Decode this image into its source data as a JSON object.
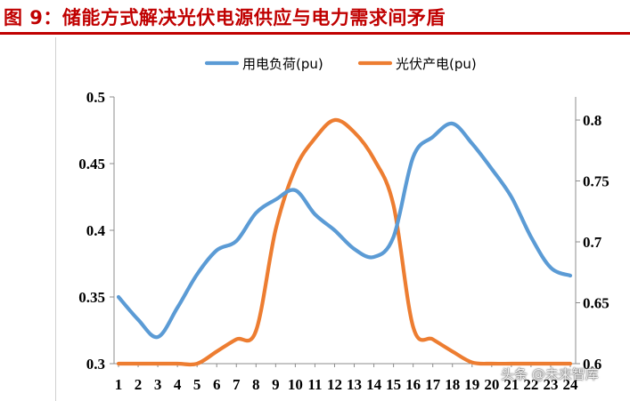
{
  "page": {
    "title": "图 9：储能方式解决光伏电源供应与电力需求间矛盾",
    "watermark": "头条 @未来智库"
  },
  "chart_data": {
    "type": "line",
    "x": [
      1,
      2,
      3,
      4,
      5,
      6,
      7,
      8,
      9,
      10,
      11,
      12,
      13,
      14,
      15,
      16,
      17,
      18,
      19,
      20,
      21,
      22,
      23,
      24
    ],
    "y_left_ticks": [
      "0.3",
      "0.35",
      "0.4",
      "0.45",
      "0.5"
    ],
    "y_right_ticks": [
      "0.6",
      "0.65",
      "0.7",
      "0.75",
      "0.8"
    ],
    "ylim_left": [
      0.3,
      0.5
    ],
    "ylim_right": [
      0.6,
      0.8
    ],
    "legend_position": "top-center",
    "series": [
      {
        "name": "用电负荷(pu)",
        "axis": "left",
        "color": "#5b9bd5",
        "values": [
          0.35,
          0.333,
          0.32,
          0.342,
          0.367,
          0.385,
          0.392,
          0.413,
          0.423,
          0.43,
          0.412,
          0.4,
          0.386,
          0.38,
          0.395,
          0.455,
          0.47,
          0.48,
          0.465,
          0.446,
          0.425,
          0.395,
          0.372,
          0.366
        ]
      },
      {
        "name": "光伏产电(pu)",
        "axis": "right",
        "color": "#ed7d31",
        "values": [
          0.6,
          0.6,
          0.6,
          0.6,
          0.6,
          0.61,
          0.62,
          0.627,
          0.71,
          0.76,
          0.785,
          0.8,
          0.79,
          0.768,
          0.73,
          0.63,
          0.62,
          0.61,
          0.601,
          0.6,
          0.6,
          0.6,
          0.6,
          0.6
        ]
      }
    ]
  }
}
